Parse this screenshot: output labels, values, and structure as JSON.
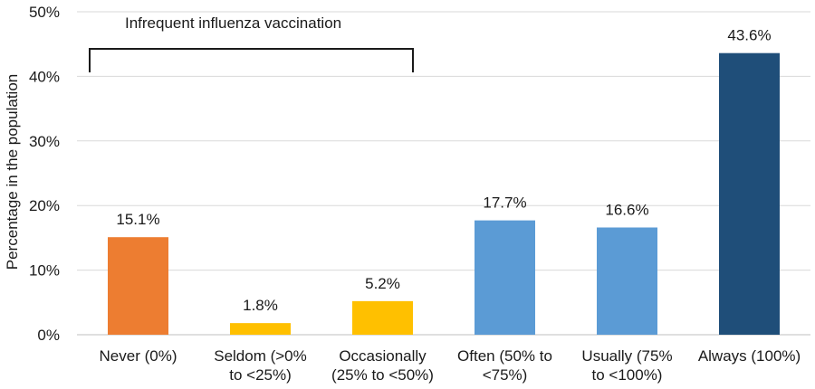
{
  "chart_data": {
    "type": "bar",
    "title": "",
    "xlabel": "",
    "ylabel": "Percentage in the population",
    "ylim": [
      0,
      50
    ],
    "yticks": [
      "0%",
      "10%",
      "20%",
      "30%",
      "40%",
      "50%"
    ],
    "grid": "horizontal",
    "categories": [
      [
        "Never (0%)"
      ],
      [
        "Seldom (>0%",
        "to <25%)"
      ],
      [
        "Occasionally",
        "(25% to <50%)"
      ],
      [
        "Often (50% to",
        "<75%)"
      ],
      [
        "Usually (75%",
        "to <100%)"
      ],
      [
        "Always (100%)"
      ]
    ],
    "values": [
      15.1,
      1.8,
      5.2,
      17.7,
      16.6,
      43.6
    ],
    "value_labels": [
      "15.1%",
      "1.8%",
      "5.2%",
      "17.7%",
      "16.6%",
      "43.6%"
    ],
    "colors": [
      "#ED7D31",
      "#FFC000",
      "#FFC000",
      "#5B9BD5",
      "#5B9BD5",
      "#1F4E79"
    ],
    "annotation": {
      "text": "Infrequent influenza vaccination",
      "spans_categories": [
        0,
        2
      ]
    }
  }
}
